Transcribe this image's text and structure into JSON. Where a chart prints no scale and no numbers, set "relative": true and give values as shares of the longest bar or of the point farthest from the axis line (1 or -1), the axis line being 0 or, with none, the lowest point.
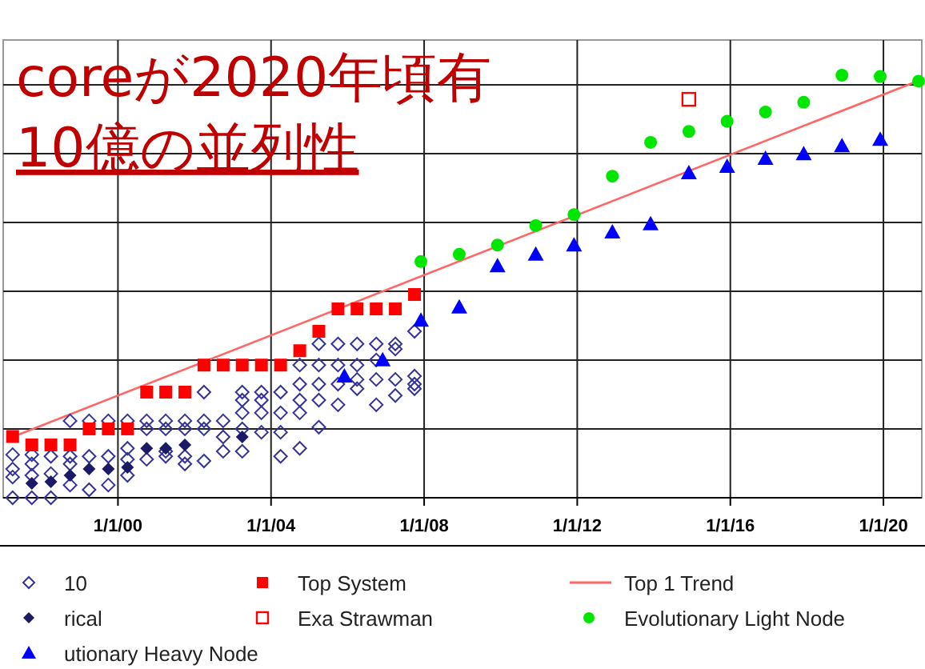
{
  "chart_data": {
    "type": "scatter",
    "title": "coreが2020年頃有",
    "subtitle": "10億の並列性",
    "relative": true,
    "xlim": [
      "1997-01",
      "2021-01"
    ],
    "xticks": [
      {
        "value": "2000-01-01",
        "label": "1/1/00"
      },
      {
        "value": "2004-01-01",
        "label": "1/1/04"
      },
      {
        "value": "2008-01-01",
        "label": "1/1/08"
      },
      {
        "value": "2012-01-01",
        "label": "1/1/12"
      },
      {
        "value": "2016-01-01",
        "label": "1/1/16"
      },
      {
        "value": "2020-01-01",
        "label": "1/1/20"
      }
    ],
    "grid": true,
    "legend": "bottom",
    "series": [
      {
        "name": "10",
        "color": "#333399",
        "marker": "diamond-open",
        "x": [
          "1997-04",
          "1997-04",
          "1997-04",
          "1997-04",
          "1997-10",
          "1997-10",
          "1997-10",
          "1997-10",
          "1998-04",
          "1998-04",
          "1998-04",
          "1998-10",
          "1998-10",
          "1998-10",
          "1998-10",
          "1999-04",
          "1999-04",
          "1999-04",
          "1999-10",
          "1999-10",
          "1999-10",
          "2000-04",
          "2000-04",
          "2000-04",
          "2000-04",
          "2000-10",
          "2000-10",
          "2000-10",
          "2001-04",
          "2001-04",
          "2001-04",
          "2001-04",
          "2001-10",
          "2001-10",
          "2001-10",
          "2001-10",
          "2002-04",
          "2002-04",
          "2002-04",
          "2002-04",
          "2002-10",
          "2002-10",
          "2002-10",
          "2003-04",
          "2003-04",
          "2003-04",
          "2003-04",
          "2003-04",
          "2003-10",
          "2003-10",
          "2003-10",
          "2003-10",
          "2004-04",
          "2004-04",
          "2004-04",
          "2004-04",
          "2004-10",
          "2004-10",
          "2004-10",
          "2004-10",
          "2004-10",
          "2005-04",
          "2005-04",
          "2005-04",
          "2005-04",
          "2005-04",
          "2005-10",
          "2005-10",
          "2005-10",
          "2005-10",
          "2006-04",
          "2006-04",
          "2006-04",
          "2006-04",
          "2006-10",
          "2006-10",
          "2006-10",
          "2006-10",
          "2007-04",
          "2007-04",
          "2007-04",
          "2007-04",
          "2007-10",
          "2007-10",
          "2007-10",
          "2007-10"
        ],
        "values": [
          0.102,
          0.068,
          0.049,
          0,
          0.102,
          0.08,
          0.053,
          0,
          0.098,
          0.057,
          0,
          0.182,
          0.098,
          0.08,
          0.03,
          0.182,
          0.098,
          0.019,
          0.182,
          0.098,
          0.03,
          0.182,
          0.117,
          0.091,
          0.053,
          0.182,
          0.163,
          0.091,
          0.182,
          0.163,
          0.11,
          0.098,
          0.182,
          0.163,
          0.098,
          0.08,
          0.25,
          0.182,
          0.163,
          0.087,
          0.182,
          0.144,
          0.11,
          0.25,
          0.231,
          0.201,
          0.163,
          0.11,
          0.25,
          0.231,
          0.201,
          0.155,
          0.25,
          0.201,
          0.155,
          0.098,
          0.314,
          0.269,
          0.231,
          0.201,
          0.117,
          0.364,
          0.314,
          0.269,
          0.231,
          0.167,
          0.364,
          0.314,
          0.269,
          0.22,
          0.364,
          0.314,
          0.28,
          0.258,
          0.364,
          0.326,
          0.28,
          0.22,
          0.364,
          0.352,
          0.28,
          0.242,
          0.394,
          0.288,
          0.269,
          0.258
        ]
      },
      {
        "name": "Top System",
        "color": "#ff0000",
        "marker": "square",
        "x": [
          "1997-04",
          "1997-10",
          "1998-04",
          "1998-10",
          "1999-04",
          "1999-10",
          "2000-04",
          "2000-10",
          "2001-04",
          "2001-10",
          "2002-04",
          "2002-10",
          "2003-04",
          "2003-10",
          "2004-04",
          "2004-10",
          "2005-04",
          "2005-10",
          "2006-04",
          "2006-10",
          "2007-04",
          "2007-10"
        ],
        "values": [
          0.145,
          0.125,
          0.125,
          0.125,
          0.163,
          0.163,
          0.163,
          0.25,
          0.25,
          0.25,
          0.314,
          0.314,
          0.314,
          0.314,
          0.314,
          0.348,
          0.394,
          0.447,
          0.447,
          0.447,
          0.447,
          0.481
        ]
      },
      {
        "name": "Top 1 Trend",
        "type": "line",
        "color": "#ff6666",
        "marker": "none",
        "line_style": "solid",
        "x": [
          "1997-04",
          "2021-01"
        ],
        "values": [
          0.144,
          0.99
        ]
      },
      {
        "name": "rical",
        "color": "#1a1a66",
        "marker": "diamond",
        "x": [
          "1997-10",
          "1998-04",
          "1998-10",
          "1999-04",
          "1999-10",
          "2000-04",
          "2000-10",
          "2001-04",
          "2001-10",
          "2003-04"
        ],
        "values": [
          0.034,
          0.038,
          0.053,
          0.068,
          0.068,
          0.072,
          0.117,
          0.117,
          0.125,
          0.144
        ]
      },
      {
        "name": "Exa Strawman",
        "color": "#ff0000",
        "marker": "square-open",
        "x": [
          "2014-12"
        ],
        "values": [
          0.943
        ]
      },
      {
        "name": "Evolutionary Light Node",
        "color": "#00e600",
        "marker": "circle",
        "x": [
          "2007-12",
          "2008-12",
          "2009-12",
          "2010-12",
          "2011-12",
          "2012-12",
          "2013-12",
          "2014-12",
          "2015-12",
          "2016-12",
          "2017-12",
          "2018-12",
          "2019-12",
          "2020-12"
        ],
        "values": [
          0.559,
          0.576,
          0.598,
          0.644,
          0.67,
          0.761,
          0.841,
          0.867,
          0.891,
          0.913,
          0.936,
          1.0,
          0.997,
          0.986
        ]
      },
      {
        "name": "utionary Heavy Node",
        "color": "#0000ff",
        "marker": "triangle",
        "x": [
          "2005-12",
          "2006-12",
          "2007-12",
          "2008-12",
          "2009-12",
          "2010-12",
          "2011-12",
          "2012-12",
          "2013-12",
          "2014-12",
          "2015-12",
          "2016-12",
          "2017-12",
          "2018-12",
          "2019-12"
        ],
        "values": [
          0.288,
          0.326,
          0.42,
          0.451,
          0.549,
          0.576,
          0.598,
          0.629,
          0.648,
          0.769,
          0.784,
          0.803,
          0.814,
          0.833,
          0.848
        ]
      }
    ]
  }
}
